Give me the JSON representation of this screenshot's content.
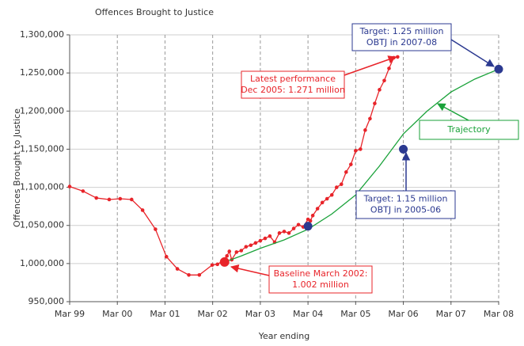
{
  "chart_data": {
    "type": "line",
    "title": "Offences Brought to Justice",
    "y_label": "Offences Brought to Justice",
    "x_label": "Year ending",
    "xlim": [
      1999,
      2008
    ],
    "xticks": [
      {
        "value": 1999,
        "label": "Mar 99"
      },
      {
        "value": 2000,
        "label": "Mar 00"
      },
      {
        "value": 2001,
        "label": "Mar 01"
      },
      {
        "value": 2002,
        "label": "Mar 02"
      },
      {
        "value": 2003,
        "label": "Mar 03"
      },
      {
        "value": 2004,
        "label": "Mar 04"
      },
      {
        "value": 2005,
        "label": "Mar 05"
      },
      {
        "value": 2006,
        "label": "Mar 06"
      },
      {
        "value": 2007,
        "label": "Mar 07"
      },
      {
        "value": 2008,
        "label": "Mar 08"
      }
    ],
    "ylim": [
      950000,
      1300000
    ],
    "yticks": [
      {
        "value": 950000,
        "label": "950,000"
      },
      {
        "value": 1000000,
        "label": "1,000,000"
      },
      {
        "value": 1050000,
        "label": "1,050,000"
      },
      {
        "value": 1100000,
        "label": "1,100,000"
      },
      {
        "value": 1150000,
        "label": "1,150,000"
      },
      {
        "value": 1200000,
        "label": "1,200,000"
      },
      {
        "value": 1250000,
        "label": "1,250,000"
      },
      {
        "value": 1300000,
        "label": "1,300,000"
      }
    ],
    "grid": true,
    "series": [
      {
        "color": "#e8242a",
        "style": "line-markers",
        "x": [
          1999.0,
          1999.28,
          1999.56,
          1999.83,
          2000.06,
          2000.3,
          2000.53,
          2000.8,
          2001.03,
          2001.26,
          2001.5,
          2001.72,
          2001.99,
          2002.1,
          2002.2,
          2002.3,
          2002.35,
          2002.4,
          2002.5,
          2002.6,
          2002.7,
          2002.8,
          2002.9,
          2003.0,
          2003.1,
          2003.2,
          2003.3,
          2003.4,
          2003.5,
          2003.6,
          2003.7,
          2003.8,
          2003.9,
          2004.0,
          2004.05,
          2004.1,
          2004.2,
          2004.3,
          2004.4,
          2004.5,
          2004.6,
          2004.7,
          2004.8,
          2004.9,
          2005.0,
          2005.1,
          2005.2,
          2005.3,
          2005.4,
          2005.5,
          2005.6,
          2005.7,
          2005.8,
          2005.88
        ],
        "values": [
          1101000,
          1095000,
          1086000,
          1084000,
          1085000,
          1084000,
          1070000,
          1045000,
          1009000,
          993000,
          985000,
          985000,
          998000,
          999000,
          1003000,
          1010000,
          1016000,
          1005000,
          1015000,
          1017000,
          1022000,
          1024000,
          1027000,
          1030000,
          1033000,
          1036000,
          1028000,
          1040000,
          1042000,
          1040000,
          1046000,
          1051000,
          1048000,
          1058000,
          1056000,
          1063000,
          1072000,
          1080000,
          1085000,
          1090000,
          1100000,
          1104000,
          1120000,
          1130000,
          1148000,
          1150000,
          1175000,
          1190000,
          1210000,
          1228000,
          1240000,
          1256000,
          1270000,
          1271000
        ]
      },
      {
        "color": "#1aa23a",
        "style": "line",
        "x": [
          2002.25,
          2002.6,
          2003.0,
          2003.5,
          2004.0,
          2004.5,
          2005.0,
          2005.5,
          2006.0,
          2006.5,
          2007.0,
          2007.5,
          2008.0
        ],
        "values": [
          1002000,
          1010000,
          1020000,
          1031000,
          1045000,
          1065000,
          1090000,
          1128000,
          1170000,
          1200000,
          1225000,
          1242000,
          1255000
        ]
      },
      {
        "color": "#2b3990",
        "style": "markers",
        "x": [
          2004.0,
          2006.0,
          2008.0
        ],
        "values": [
          1049000,
          1150000,
          1255000
        ]
      }
    ],
    "baseline_point": {
      "x": 2002.25,
      "value": 1002000,
      "color": "#e8242a"
    },
    "annotations": [
      {
        "lines": [
          "Latest performance",
          "Dec 2005: 1.271 million"
        ],
        "color": "#e8242a"
      },
      {
        "lines": [
          "Baseline March 2002:",
          "1.002 million"
        ],
        "color": "#e8242a"
      },
      {
        "lines": [
          "Target: 1.15 million",
          "OBTJ in 2005-06"
        ],
        "color": "#2b3990"
      },
      {
        "lines": [
          "Target: 1.25 million",
          "OBTJ in 2007-08"
        ],
        "color": "#2b3990"
      },
      {
        "lines": [
          "Trajectory"
        ],
        "color": "#1aa23a"
      }
    ]
  }
}
